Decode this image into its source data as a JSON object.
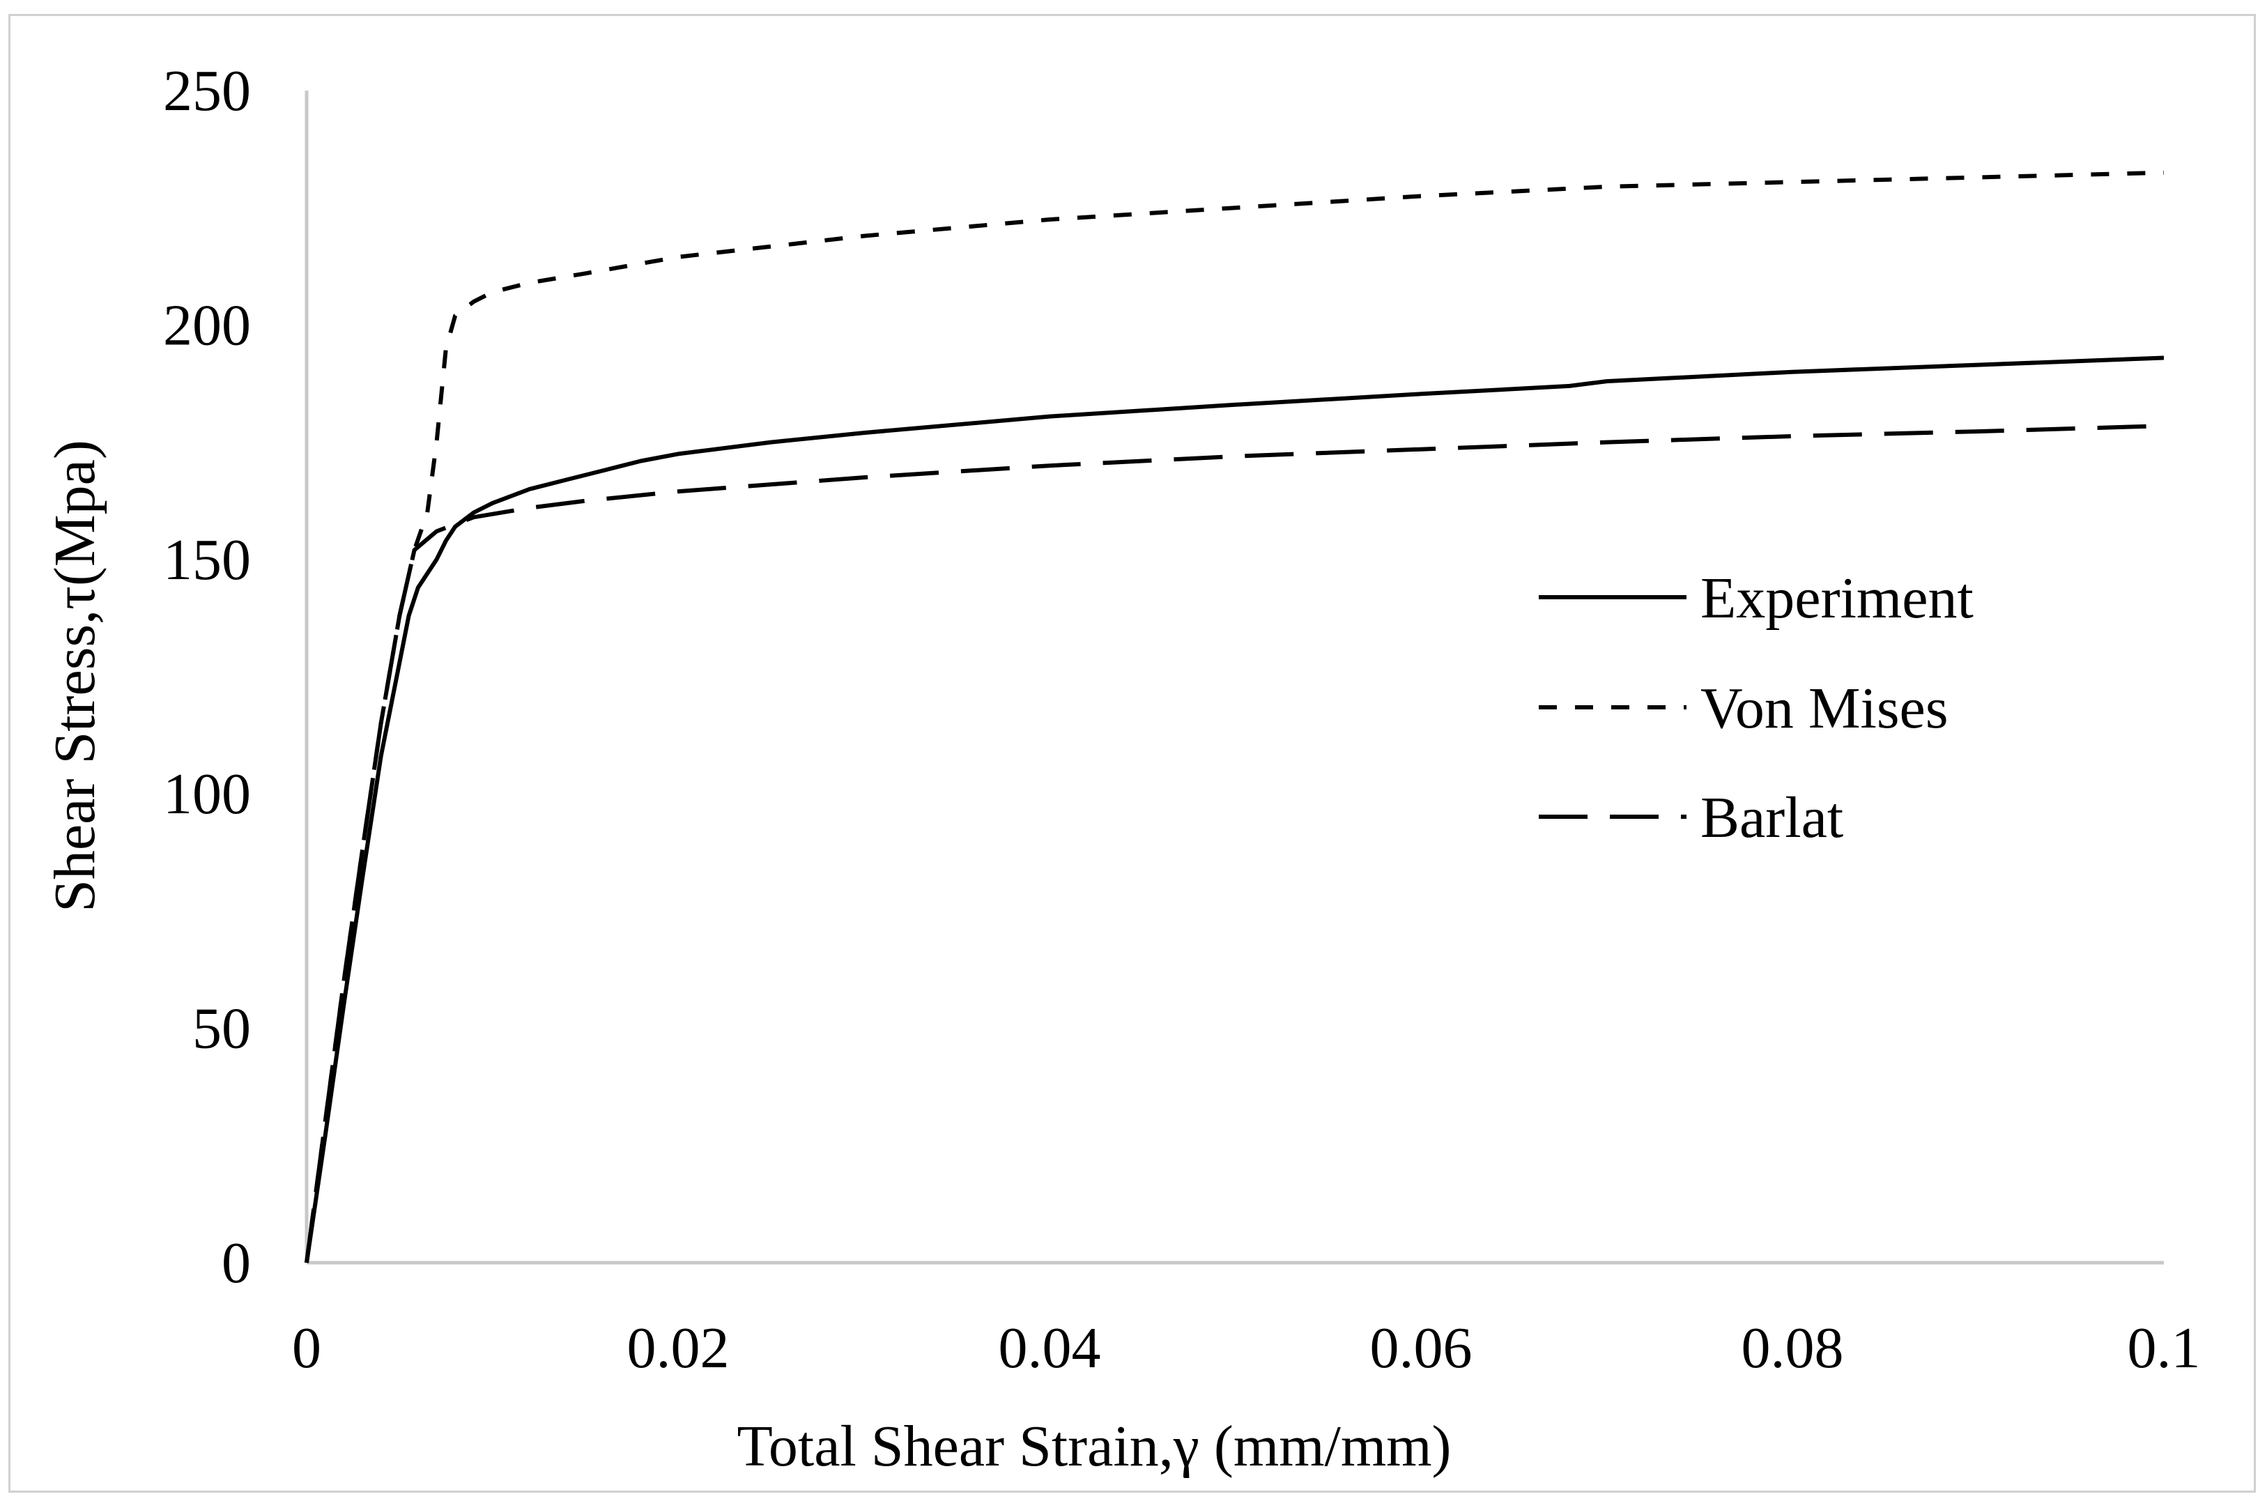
{
  "chart_data": {
    "type": "line",
    "title": "",
    "xlabel": "Total Shear Strain,γ (mm/mm)",
    "ylabel": "Shear Stress,τ(Mpa)",
    "xlim": [
      0,
      0.1
    ],
    "ylim": [
      0,
      250
    ],
    "xticks": [
      0,
      0.02,
      0.04,
      0.06,
      0.08,
      0.1
    ],
    "xtick_labels": [
      "0",
      "0.02",
      "0.04",
      "0.06",
      "0.08",
      "0.1"
    ],
    "yticks": [
      0,
      50,
      100,
      150,
      200,
      250
    ],
    "ytick_labels": [
      "0",
      "50",
      "100",
      "150",
      "200",
      "250"
    ],
    "grid": false,
    "legend_position": "right-center",
    "series": [
      {
        "name": "Experiment",
        "style": "solid",
        "x": [
          0,
          0.001,
          0.002,
          0.003,
          0.004,
          0.005,
          0.0055,
          0.006,
          0.007,
          0.0075,
          0.008,
          0.009,
          0.01,
          0.012,
          0.014,
          0.016,
          0.018,
          0.02,
          0.025,
          0.03,
          0.04,
          0.05,
          0.06,
          0.068,
          0.07,
          0.08,
          0.09,
          0.1
        ],
        "y": [
          0,
          27,
          55,
          82,
          108,
          128,
          138,
          144,
          150,
          154,
          157,
          160,
          162,
          165,
          167,
          169,
          171,
          172.5,
          175,
          177,
          180.5,
          183,
          185.3,
          187,
          188,
          190,
          191.5,
          193
        ]
      },
      {
        "name": "Von Mises",
        "style": "dotted",
        "x": [
          0,
          0.001,
          0.002,
          0.003,
          0.004,
          0.005,
          0.0058,
          0.0065,
          0.007,
          0.0075,
          0.008,
          0.009,
          0.01,
          0.012,
          0.015,
          0.02,
          0.03,
          0.04,
          0.05,
          0.06,
          0.07,
          0.08,
          0.09,
          0.1
        ],
        "y": [
          0,
          30,
          60,
          88,
          115,
          138,
          152,
          160,
          175,
          195,
          202,
          205,
          207,
          209,
          211,
          214.5,
          219,
          222.5,
          225,
          227.5,
          229.5,
          230.5,
          231.5,
          232.5
        ]
      },
      {
        "name": "Barlat",
        "style": "dashed",
        "x": [
          0,
          0.001,
          0.002,
          0.003,
          0.004,
          0.005,
          0.0058,
          0.007,
          0.009,
          0.012,
          0.015,
          0.02,
          0.03,
          0.04,
          0.05,
          0.06,
          0.07,
          0.08,
          0.09,
          0.1
        ],
        "y": [
          0,
          30,
          60,
          88,
          115,
          138,
          152,
          156,
          159,
          161,
          162.5,
          164.5,
          167.5,
          170,
          172,
          173.5,
          175,
          176.3,
          177.3,
          178.5
        ]
      }
    ]
  },
  "colors": {
    "axis": "#c8c8c8",
    "line": "#000000"
  }
}
